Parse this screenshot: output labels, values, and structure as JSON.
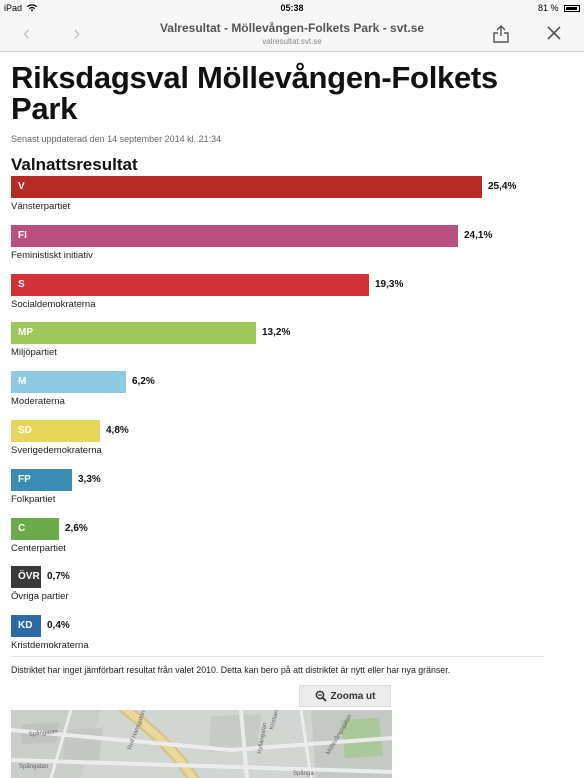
{
  "status": {
    "device": "iPad",
    "time": "05:38",
    "battery": "81 %"
  },
  "browser": {
    "title": "Valresultat - Möllevången-Folkets Park - svt.se",
    "url": "valresultat.svt.se"
  },
  "page": {
    "title": "Riksdagsval Möllevången-Folkets Park",
    "updated": "Senast uppdaterad den 14 september 2014 kl. 21:34",
    "section_title": "Valnattsresultat"
  },
  "results": [
    {
      "abbr": "V",
      "name": "Vänsterpartiet",
      "value_label": "25,4%",
      "percent": 25.4,
      "color": "#b72a26"
    },
    {
      "abbr": "FI",
      "name": "Feministiskt initiativ",
      "value_label": "24,1%",
      "percent": 24.1,
      "color": "#b9507f"
    },
    {
      "abbr": "S",
      "name": "Socialdemokraterna",
      "value_label": "19,3%",
      "percent": 19.3,
      "color": "#d03238"
    },
    {
      "abbr": "MP",
      "name": "Miljöpartiet",
      "value_label": "13,2%",
      "percent": 13.2,
      "color": "#9fc65a"
    },
    {
      "abbr": "M",
      "name": "Moderaterna",
      "value_label": "6,2%",
      "percent": 6.2,
      "color": "#8fcbe0"
    },
    {
      "abbr": "SD",
      "name": "Sverigedemokraterna",
      "value_label": "4,8%",
      "percent": 4.8,
      "color": "#e5d75a"
    },
    {
      "abbr": "FP",
      "name": "Folkpartiet",
      "value_label": "3,3%",
      "percent": 3.3,
      "color": "#3a8cb5"
    },
    {
      "abbr": "C",
      "name": "Centerpartiet",
      "value_label": "2,6%",
      "percent": 2.6,
      "color": "#6cab4c"
    },
    {
      "abbr": "ÖVR",
      "name": "Övriga partier",
      "value_label": "0,7%",
      "percent": 0.7,
      "color": "#3a3a3a"
    },
    {
      "abbr": "KD",
      "name": "Kristdemokraterna",
      "value_label": "0,4%",
      "percent": 0.4,
      "color": "#2e6aa6"
    }
  ],
  "note": "Distriktet har inget jämförbart resultat från valet 2010. Detta kan bero på att distriktet är nytt eller har nya gränser.",
  "zoom_button_label": "Zooma ut",
  "map": {
    "street_labels": [
      "Spångatan",
      "Spångatan",
      "Rolf Hansgatan",
      "Hyllängatan",
      "Kristianstadsgatan",
      "Möllevångsgatan",
      "Spånga"
    ]
  },
  "icons": {
    "back": "chevron-left-icon",
    "forward": "chevron-right-icon",
    "share": "share-icon",
    "close": "close-icon",
    "wifi": "wifi-icon",
    "battery": "battery-icon",
    "zoom": "zoom-out-icon"
  }
}
